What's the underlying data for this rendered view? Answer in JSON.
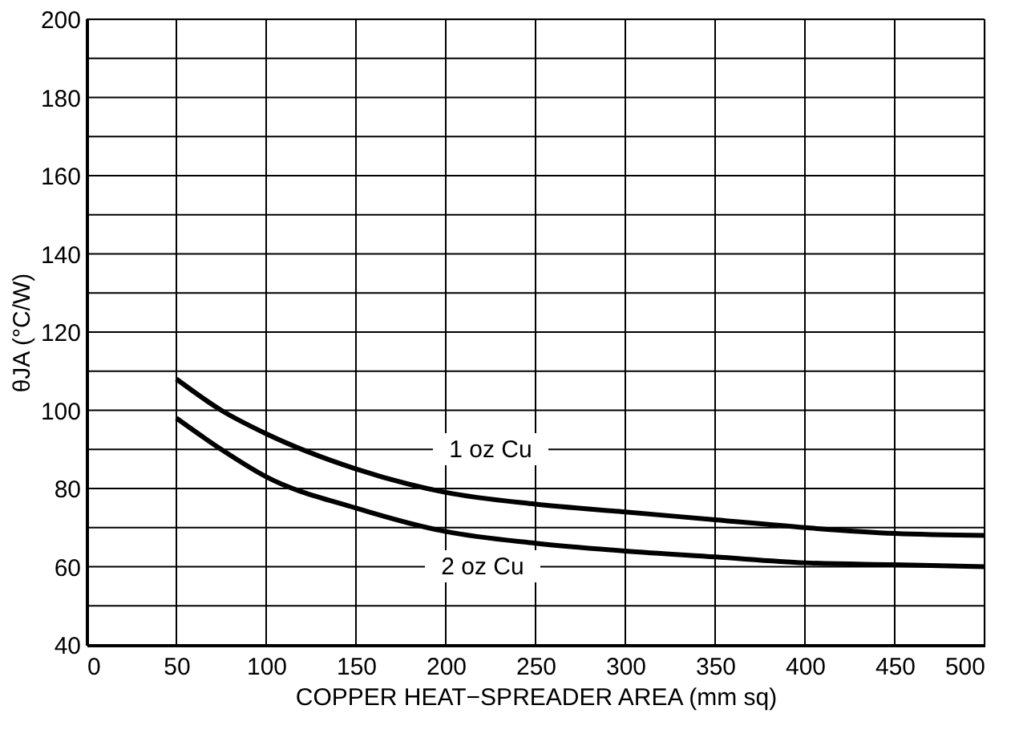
{
  "chart_data": {
    "type": "line",
    "xlabel": "COPPER HEAT−SPREADER AREA (mm sq)",
    "ylabel": "θJA (°C/W)",
    "x": [
      50,
      75,
      100,
      150,
      200,
      250,
      300,
      350,
      400,
      450,
      500
    ],
    "series": [
      {
        "color": "#000000",
        "values": [
          108,
          100,
          94,
          85,
          79,
          76,
          74,
          72,
          70,
          68.5,
          68
        ]
      },
      {
        "color": "#000000",
        "values": [
          98,
          90,
          83,
          75,
          69,
          66,
          64,
          62.5,
          61,
          60.5,
          60
        ]
      }
    ],
    "annotations": [
      "1 oz Cu",
      "2 oz Cu"
    ],
    "xlim": [
      0,
      500
    ],
    "xticks": [
      0,
      50,
      100,
      150,
      200,
      250,
      300,
      350,
      400,
      450,
      500
    ],
    "ylim": [
      40,
      200
    ],
    "yticks": [
      40,
      {
        "value": 50,
        "label": null
      },
      60,
      {
        "value": 70,
        "label": null
      },
      80,
      {
        "value": 90,
        "label": null
      },
      100,
      {
        "value": 110,
        "label": null
      },
      120,
      {
        "value": 130,
        "label": null
      },
      140,
      {
        "value": 150,
        "label": null
      },
      160,
      {
        "value": 170,
        "label": null
      },
      180,
      {
        "value": 190,
        "label": null
      },
      200
    ],
    "grid": true,
    "legend": false,
    "marker": "none",
    "line_style": "solid"
  }
}
